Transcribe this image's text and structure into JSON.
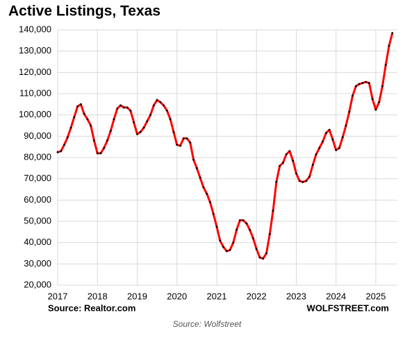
{
  "chart_data": {
    "type": "line",
    "title": "Active Listings, Texas",
    "source_left": "Source: Realtor.com",
    "source_right": "WOLFSTREET.com",
    "caption": "Source: Wolfstreet",
    "categories": [
      "2017",
      null,
      null,
      null,
      null,
      null,
      null,
      null,
      null,
      null,
      null,
      null,
      "2018",
      null,
      null,
      null,
      null,
      null,
      null,
      null,
      null,
      null,
      null,
      null,
      "2019",
      null,
      null,
      null,
      null,
      null,
      null,
      null,
      null,
      null,
      null,
      null,
      "2020",
      null,
      null,
      null,
      null,
      null,
      null,
      null,
      null,
      null,
      null,
      null,
      "2021",
      null,
      null,
      null,
      null,
      null,
      null,
      null,
      null,
      null,
      null,
      null,
      "2022",
      null,
      null,
      null,
      null,
      null,
      null,
      null,
      null,
      null,
      null,
      null,
      "2023",
      null,
      null,
      null,
      null,
      null,
      null,
      null,
      null,
      null,
      null,
      null,
      "2024",
      null,
      null,
      null,
      null,
      null,
      null,
      null,
      null,
      null,
      null,
      null,
      "2025",
      null,
      null,
      null,
      null,
      null
    ],
    "series": [
      {
        "name": "Active Listings",
        "color": "#ff0000",
        "marker_color": "#000000",
        "values": [
          82500,
          83000,
          86000,
          89500,
          94000,
          99000,
          104000,
          105000,
          100500,
          98000,
          95000,
          88000,
          82000,
          82000,
          84500,
          88000,
          92500,
          98000,
          103000,
          104500,
          103500,
          103500,
          102000,
          96500,
          91000,
          92000,
          94000,
          97000,
          100000,
          104500,
          107000,
          106000,
          104500,
          102000,
          98000,
          92000,
          86000,
          85500,
          89000,
          89000,
          87000,
          79000,
          75000,
          70500,
          66000,
          63000,
          59000,
          53500,
          47500,
          41000,
          38000,
          36000,
          36500,
          40000,
          46000,
          50500,
          50500,
          49000,
          46000,
          42000,
          37000,
          33000,
          32500,
          35000,
          44000,
          55000,
          68500,
          76000,
          77500,
          81500,
          83000,
          78500,
          72500,
          69000,
          68500,
          69000,
          71000,
          76500,
          81500,
          84500,
          87500,
          91500,
          93000,
          88500,
          83500,
          84500,
          89500,
          95000,
          101500,
          109000,
          113500,
          114500,
          115000,
          115500,
          115000,
          107500,
          102500,
          106000,
          113500,
          123500,
          132500,
          138500
        ]
      }
    ],
    "ylim": [
      20000,
      140000
    ],
    "yticks": [
      {
        "value": 20000,
        "label": "20,000"
      },
      {
        "value": 30000,
        "label": "30,000"
      },
      {
        "value": 40000,
        "label": "40,000"
      },
      {
        "value": 50000,
        "label": "50,000"
      },
      {
        "value": 60000,
        "label": "60,000"
      },
      {
        "value": 70000,
        "label": "70,000"
      },
      {
        "value": 80000,
        "label": "80,000"
      },
      {
        "value": 90000,
        "label": "90,000"
      },
      {
        "value": 100000,
        "label": "100,000"
      },
      {
        "value": 110000,
        "label": "110,000"
      },
      {
        "value": 120000,
        "label": "120,000"
      },
      {
        "value": 130000,
        "label": "130,000"
      },
      {
        "value": 140000,
        "label": "140,000"
      }
    ],
    "grid": true
  }
}
